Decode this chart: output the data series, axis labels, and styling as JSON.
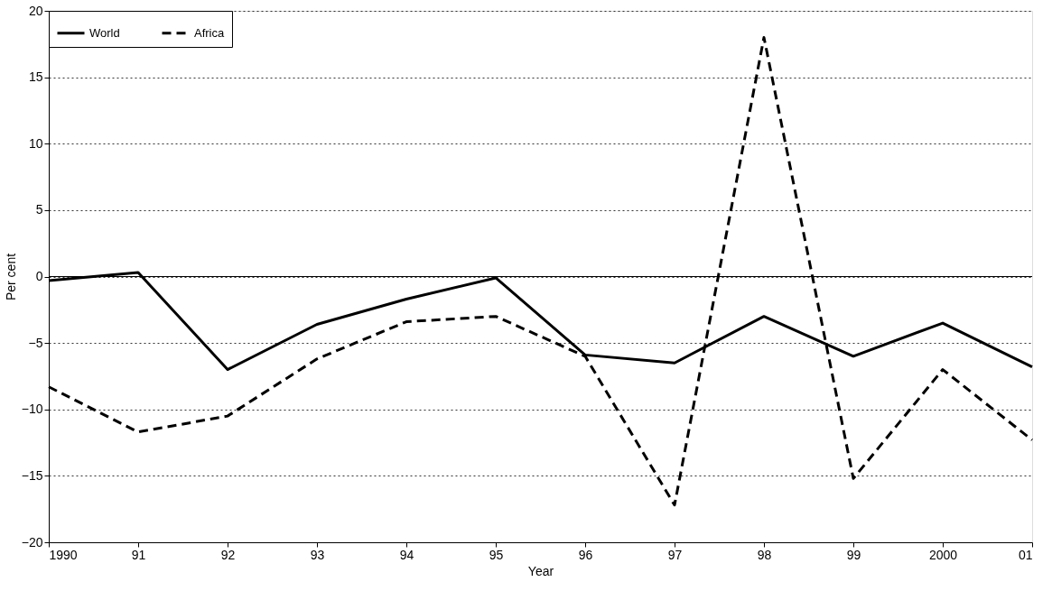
{
  "chart_data": {
    "type": "line",
    "xlabel": "Year",
    "ylabel": "Per cent",
    "categories": [
      "1990",
      "91",
      "92",
      "93",
      "94",
      "95",
      "96",
      "97",
      "98",
      "99",
      "2000",
      "01"
    ],
    "series": [
      {
        "name": "World",
        "color": "#000000",
        "line_style": "solid",
        "values": [
          -0.3,
          0.3,
          -7.0,
          -3.6,
          -1.7,
          -0.1,
          -5.9,
          -6.5,
          -3.0,
          -6.0,
          -3.5,
          -6.8
        ]
      },
      {
        "name": "Africa",
        "color": "#000000",
        "line_style": "dashed",
        "values": [
          -8.3,
          -11.7,
          -10.5,
          -6.2,
          -3.4,
          -3.0,
          -6.0,
          -17.2,
          18.0,
          -15.2,
          -7.0,
          -12.3
        ]
      }
    ],
    "ylim": [
      -20,
      20
    ],
    "yticks": [
      -20,
      -15,
      -10,
      -5,
      0,
      5,
      10,
      15,
      20
    ],
    "grid": "y",
    "legend": "top left",
    "marker": "none",
    "ref_lines": [
      {
        "axis": "y",
        "value": 0,
        "color": "#000000",
        "line_style": "solid"
      }
    ]
  }
}
